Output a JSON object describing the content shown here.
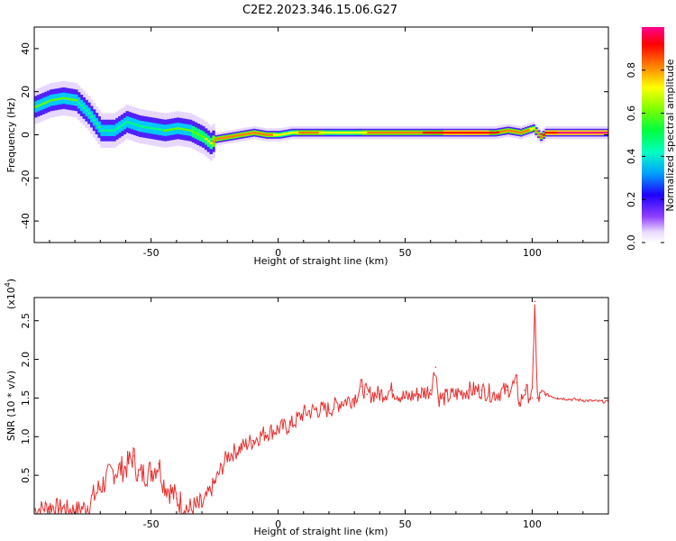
{
  "title": "C2E2.2023.346.15.06.G27",
  "chart_data": [
    {
      "type": "heatmap",
      "xlabel": "Height of straight line (km)",
      "ylabel": "Frequency (Hz)",
      "xlim": [
        -96,
        130
      ],
      "ylim": [
        -50,
        50
      ],
      "xticks": [
        -50,
        0,
        50,
        100
      ],
      "yticks": [
        -40,
        -20,
        0,
        20,
        40
      ],
      "colorbar": {
        "label": "Normalized spectral amplitude",
        "range": [
          0.0,
          1.0
        ],
        "ticks": [
          0.0,
          0.2,
          0.4,
          0.6,
          0.8
        ],
        "colors": [
          "#e8d8ff",
          "#9040ff",
          "#2000ff",
          "#00c8ff",
          "#00ff80",
          "#60ff00",
          "#ffff00",
          "#ff8000",
          "#ff0000",
          "#ff0080"
        ]
      },
      "ridge": {
        "x": [
          -96,
          -90,
          -85,
          -80,
          -75,
          -70,
          -65,
          -60,
          -55,
          -50,
          -45,
          -40,
          -35,
          -30,
          -27,
          -25,
          -20,
          -15,
          -10,
          -5,
          0,
          5,
          10,
          20,
          30,
          40,
          50,
          60,
          70,
          80,
          85,
          90,
          95,
          100,
          103,
          105,
          110,
          120,
          130
        ],
        "frequency": [
          13,
          16,
          17,
          16,
          10,
          2,
          2,
          6,
          4,
          3,
          2,
          3,
          2,
          -1,
          -4,
          -2,
          -1,
          0,
          1,
          0,
          0,
          1,
          1,
          1,
          1,
          1,
          1,
          1,
          1,
          1,
          1,
          2,
          1,
          3,
          -1,
          1,
          1,
          1,
          1
        ],
        "amplitude": [
          0.5,
          0.55,
          0.55,
          0.5,
          0.45,
          0.4,
          0.4,
          0.45,
          0.45,
          0.45,
          0.5,
          0.5,
          0.55,
          0.6,
          0.65,
          0.8,
          0.8,
          0.8,
          0.8,
          0.75,
          0.7,
          0.7,
          0.75,
          0.7,
          0.7,
          0.75,
          0.8,
          0.85,
          0.9,
          0.9,
          0.85,
          0.8,
          0.8,
          0.7,
          0.8,
          0.9,
          0.95,
          0.95,
          0.95
        ]
      }
    },
    {
      "type": "line",
      "xlabel": "Height of straight line (km)",
      "ylabel": "SNR (10 * v/v)",
      "yscale_label": "(x10",
      "yscale_exp": "4",
      "xlim": [
        -96,
        130
      ],
      "ylim": [
        0,
        2.8
      ],
      "xticks": [
        -50,
        0,
        50,
        100
      ],
      "yticks": [
        0.5,
        1.0,
        1.5,
        2.0,
        2.5
      ],
      "color": "#e83030",
      "series": [
        {
          "x": [
            -96,
            -90,
            -85,
            -80,
            -75,
            -70,
            -65,
            -60,
            -57,
            -55,
            -50,
            -47,
            -45,
            -40,
            -35,
            -30,
            -25,
            -20,
            -15,
            -10,
            -5,
            0,
            5,
            10,
            15,
            20,
            25,
            30,
            33,
            35,
            40,
            45,
            50,
            55,
            60,
            62,
            63,
            65,
            70,
            75,
            80,
            85,
            90,
            94,
            95,
            97,
            100,
            101,
            102,
            103,
            105,
            110,
            120,
            130
          ],
          "y": [
            0.05,
            0.1,
            0.08,
            0.05,
            0.1,
            0.35,
            0.55,
            0.6,
            0.75,
            0.5,
            0.55,
            0.65,
            0.4,
            0.2,
            0.05,
            0.1,
            0.4,
            0.75,
            0.85,
            0.95,
            1.05,
            1.1,
            1.15,
            1.3,
            1.35,
            1.35,
            1.45,
            1.5,
            1.65,
            1.55,
            1.55,
            1.6,
            1.5,
            1.55,
            1.6,
            1.9,
            1.5,
            1.5,
            1.55,
            1.6,
            1.6,
            1.55,
            1.6,
            1.7,
            1.4,
            1.6,
            1.5,
            2.75,
            1.5,
            1.5,
            1.55,
            1.5,
            1.47,
            1.45
          ]
        }
      ]
    }
  ]
}
